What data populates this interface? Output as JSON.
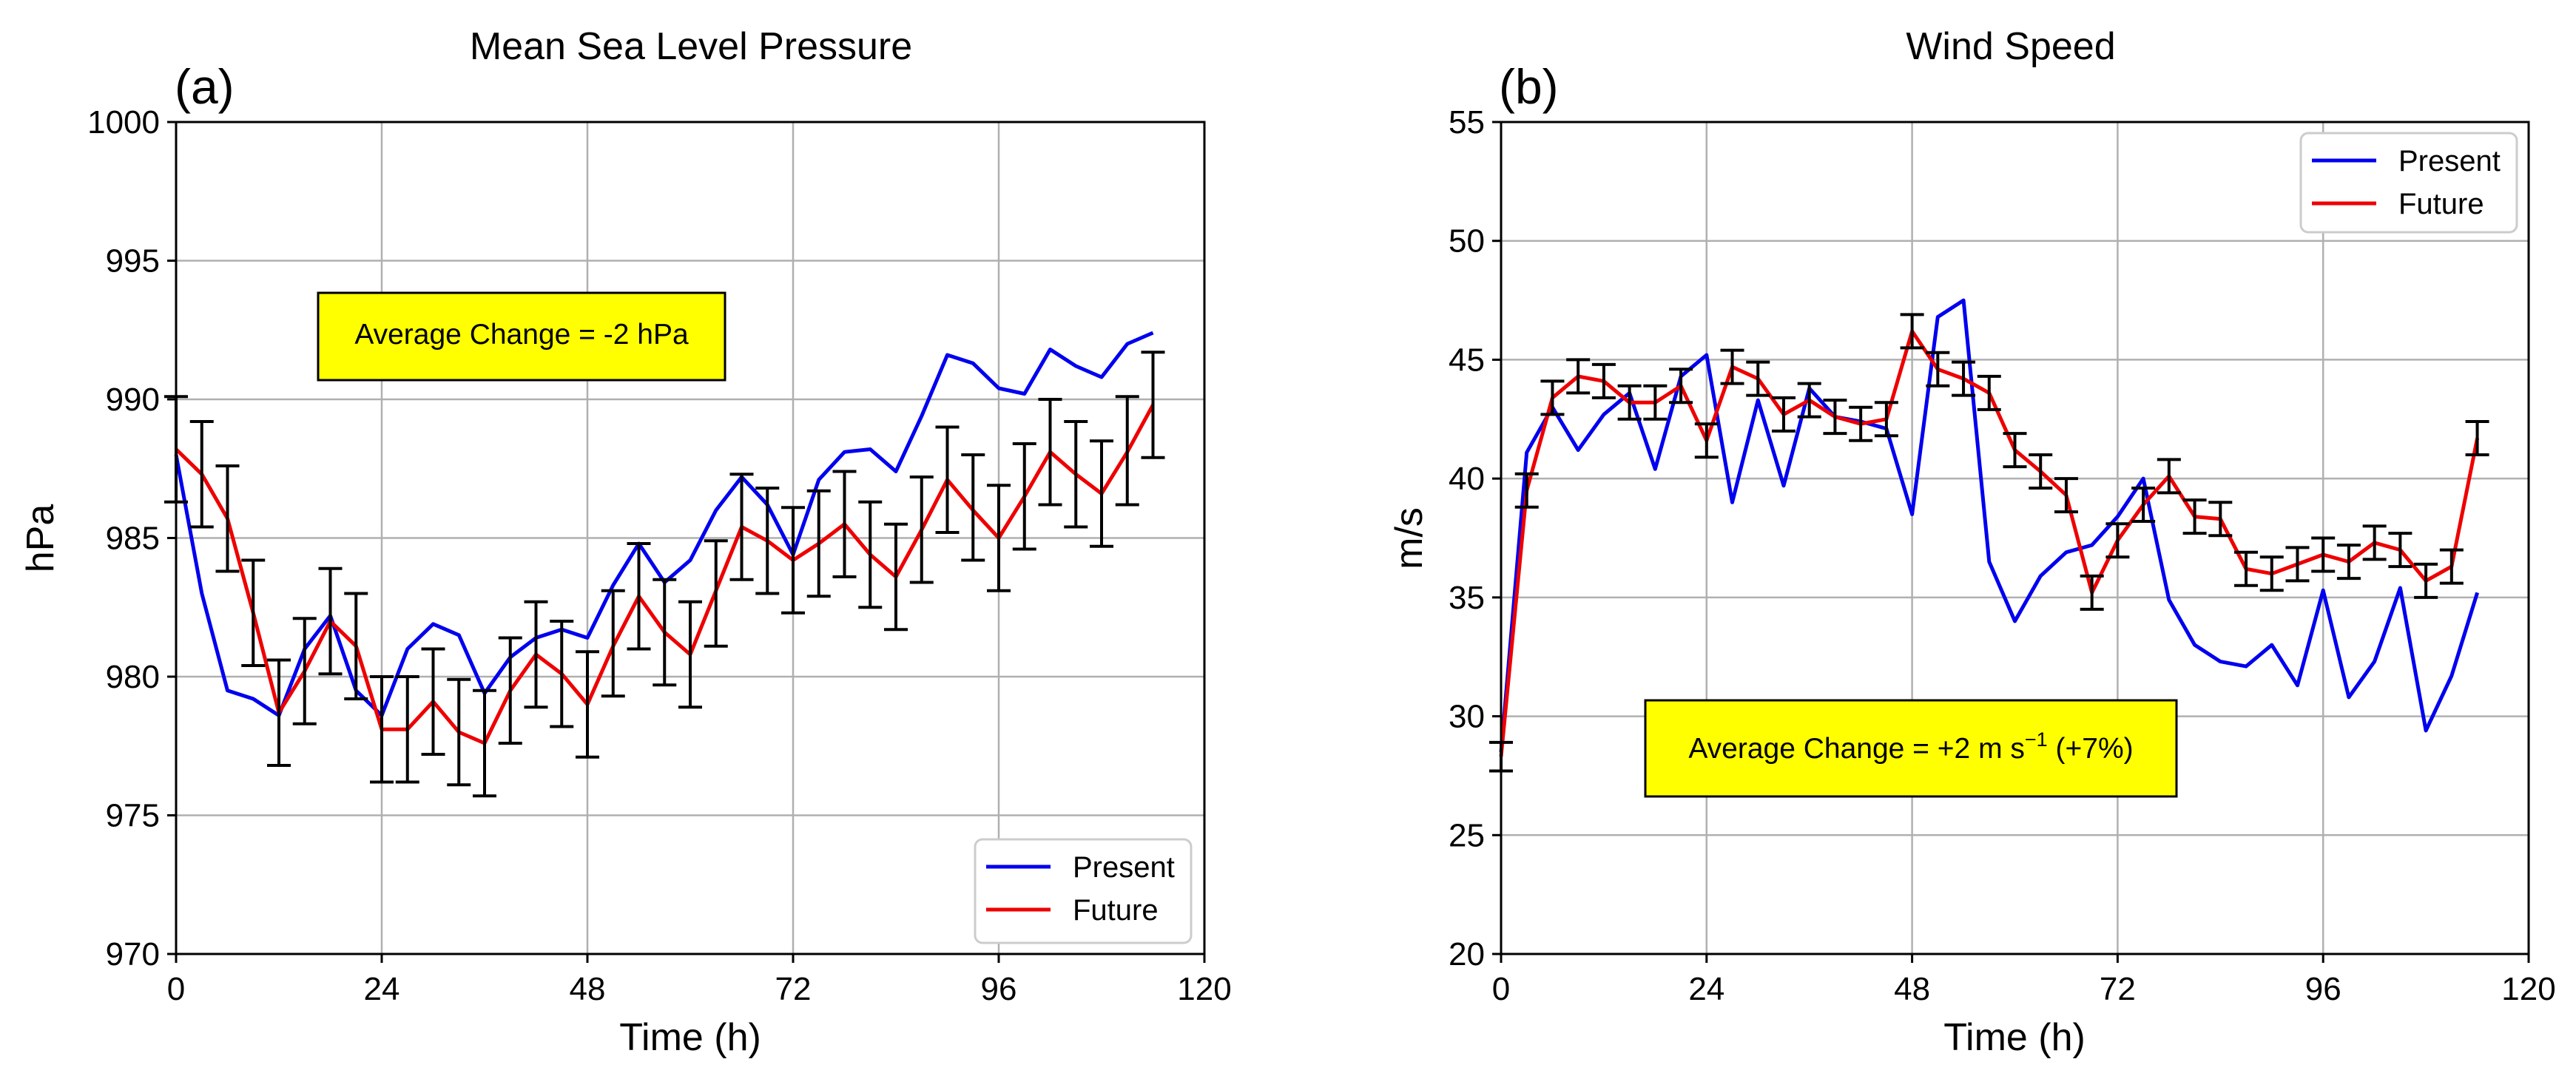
{
  "chart_data": [
    {
      "type": "line",
      "panel_label": "(a)",
      "title": "Mean Sea Level Pressure",
      "xlabel": "Time (h)",
      "ylabel": "hPa",
      "xlim": [
        0,
        120
      ],
      "ylim": [
        970,
        1000
      ],
      "xticks": [
        0,
        24,
        48,
        72,
        96,
        120
      ],
      "yticks": [
        970,
        975,
        980,
        985,
        990,
        995,
        1000
      ],
      "grid": true,
      "legend_position": "bottom-right",
      "annotation": {
        "text": "Average Change = -2 hPa",
        "position": "upper-left",
        "background": "#ffff00"
      },
      "series": [
        {
          "name": "Present",
          "color": "#0000ee",
          "x": [
            0,
            3,
            6,
            9,
            12,
            15,
            18,
            21,
            24,
            27,
            30,
            33,
            36,
            39,
            42,
            45,
            48,
            51,
            54,
            57,
            60,
            63,
            66,
            69,
            72,
            75,
            78,
            81,
            84,
            87,
            90,
            93,
            96,
            99,
            102,
            105,
            108,
            111,
            114
          ],
          "values": [
            988.0,
            983.0,
            979.5,
            979.2,
            978.6,
            981.0,
            982.2,
            979.5,
            978.6,
            981.0,
            981.9,
            981.5,
            979.4,
            980.7,
            981.4,
            981.7,
            981.4,
            983.3,
            984.8,
            983.4,
            984.2,
            986.0,
            987.2,
            986.2,
            984.4,
            987.1,
            988.1,
            988.2,
            987.4,
            989.4,
            991.6,
            991.3,
            990.4,
            990.2,
            991.8,
            991.2,
            990.8,
            992.0,
            992.4
          ]
        },
        {
          "name": "Future",
          "color": "#ee0000",
          "x": [
            0,
            3,
            6,
            9,
            12,
            15,
            18,
            21,
            24,
            27,
            30,
            33,
            36,
            39,
            42,
            45,
            48,
            51,
            54,
            57,
            60,
            63,
            66,
            69,
            72,
            75,
            78,
            81,
            84,
            87,
            90,
            93,
            96,
            99,
            102,
            105,
            108,
            111,
            114
          ],
          "values": [
            988.2,
            987.3,
            985.7,
            982.3,
            978.7,
            980.2,
            982.0,
            981.1,
            978.1,
            978.1,
            979.1,
            978.0,
            977.6,
            979.5,
            980.8,
            980.1,
            979.0,
            981.1,
            982.9,
            981.6,
            980.8,
            983.1,
            985.4,
            984.9,
            984.2,
            984.8,
            985.5,
            984.4,
            983.6,
            985.3,
            987.1,
            986.0,
            985.0,
            986.5,
            988.1,
            987.3,
            986.6,
            988.1,
            989.8
          ],
          "error_low": [
            986.3,
            985.4,
            983.8,
            980.4,
            976.8,
            978.3,
            980.1,
            979.2,
            976.2,
            976.2,
            977.2,
            976.1,
            975.7,
            977.6,
            978.9,
            978.2,
            977.1,
            979.3,
            981.0,
            979.7,
            978.9,
            981.1,
            983.5,
            983.0,
            982.3,
            982.9,
            983.6,
            982.5,
            981.7,
            983.4,
            985.2,
            984.2,
            983.1,
            984.6,
            986.2,
            985.4,
            984.7,
            986.2,
            987.9
          ],
          "error_high": [
            990.1,
            989.2,
            987.6,
            984.2,
            980.6,
            982.1,
            983.9,
            983.0,
            980.0,
            980.0,
            981.0,
            979.9,
            979.5,
            981.4,
            982.7,
            982.0,
            980.9,
            983.1,
            984.8,
            983.5,
            982.7,
            984.9,
            987.3,
            986.8,
            986.1,
            986.7,
            987.4,
            986.3,
            985.5,
            987.2,
            989.0,
            988.0,
            986.9,
            988.4,
            990.0,
            989.2,
            988.5,
            990.1,
            991.7
          ]
        }
      ]
    },
    {
      "type": "line",
      "panel_label": "(b)",
      "title": "Wind Speed",
      "xlabel": "Time (h)",
      "ylabel": "m/s",
      "xlim": [
        0,
        120
      ],
      "ylim": [
        20,
        55
      ],
      "xticks": [
        0,
        24,
        48,
        72,
        96,
        120
      ],
      "yticks": [
        20,
        25,
        30,
        35,
        40,
        45,
        50,
        55
      ],
      "grid": true,
      "legend_position": "top-right",
      "annotation": {
        "text": "Average Change = +2 m s",
        "superscript": "−1",
        "suffix": " (+7%)",
        "position": "lower-center",
        "background": "#ffff00"
      },
      "series": [
        {
          "name": "Present",
          "color": "#0000ee",
          "x": [
            0,
            3,
            6,
            9,
            12,
            15,
            18,
            21,
            24,
            27,
            30,
            33,
            36,
            39,
            42,
            45,
            48,
            51,
            54,
            57,
            60,
            63,
            66,
            69,
            72,
            75,
            78,
            81,
            84,
            87,
            90,
            93,
            96,
            99,
            102,
            105,
            108,
            111,
            114
          ],
          "values": [
            28.5,
            41.1,
            43.0,
            41.2,
            42.7,
            43.6,
            40.4,
            44.3,
            45.2,
            39.0,
            43.3,
            39.7,
            43.8,
            42.6,
            42.4,
            42.1,
            38.5,
            46.8,
            47.5,
            36.5,
            34.0,
            35.9,
            36.9,
            37.2,
            38.4,
            40.0,
            34.9,
            33.0,
            32.3,
            32.1,
            33.0,
            31.3,
            35.3,
            30.8,
            32.3,
            35.4,
            29.4,
            31.7,
            35.2
          ]
        },
        {
          "name": "Future",
          "color": "#ee0000",
          "x": [
            0,
            3,
            6,
            9,
            12,
            15,
            18,
            21,
            24,
            27,
            30,
            33,
            36,
            39,
            42,
            45,
            48,
            51,
            54,
            57,
            60,
            63,
            66,
            69,
            72,
            75,
            78,
            81,
            84,
            87,
            90,
            93,
            96,
            99,
            102,
            105,
            108,
            111,
            114
          ],
          "values": [
            28.3,
            39.5,
            43.4,
            44.3,
            44.1,
            43.2,
            43.2,
            43.9,
            41.6,
            44.7,
            44.2,
            42.7,
            43.3,
            42.6,
            42.3,
            42.5,
            46.2,
            44.6,
            44.2,
            43.6,
            41.2,
            40.3,
            39.3,
            35.2,
            37.4,
            38.9,
            40.1,
            38.4,
            38.3,
            36.2,
            36.0,
            36.4,
            36.8,
            36.5,
            37.3,
            37.0,
            35.7,
            36.3,
            41.7
          ],
          "error_low": [
            27.7,
            38.8,
            42.7,
            43.6,
            43.4,
            42.5,
            42.5,
            43.2,
            40.9,
            44.0,
            43.5,
            42.0,
            42.6,
            41.9,
            41.6,
            41.8,
            45.5,
            43.9,
            43.5,
            42.9,
            40.5,
            39.6,
            38.6,
            34.5,
            36.7,
            38.2,
            39.4,
            37.7,
            37.6,
            35.5,
            35.3,
            35.7,
            36.1,
            35.8,
            36.6,
            36.3,
            35.0,
            35.6,
            41.0
          ],
          "error_high": [
            28.9,
            40.2,
            44.1,
            45.0,
            44.8,
            43.9,
            43.9,
            44.6,
            42.3,
            45.4,
            44.9,
            43.4,
            44.0,
            43.3,
            43.0,
            43.2,
            46.9,
            45.3,
            44.9,
            44.3,
            41.9,
            41.0,
            40.0,
            35.9,
            38.1,
            39.6,
            40.8,
            39.1,
            39.0,
            36.9,
            36.7,
            37.1,
            37.5,
            37.2,
            38.0,
            37.7,
            36.4,
            37.0,
            42.4
          ]
        }
      ]
    }
  ]
}
